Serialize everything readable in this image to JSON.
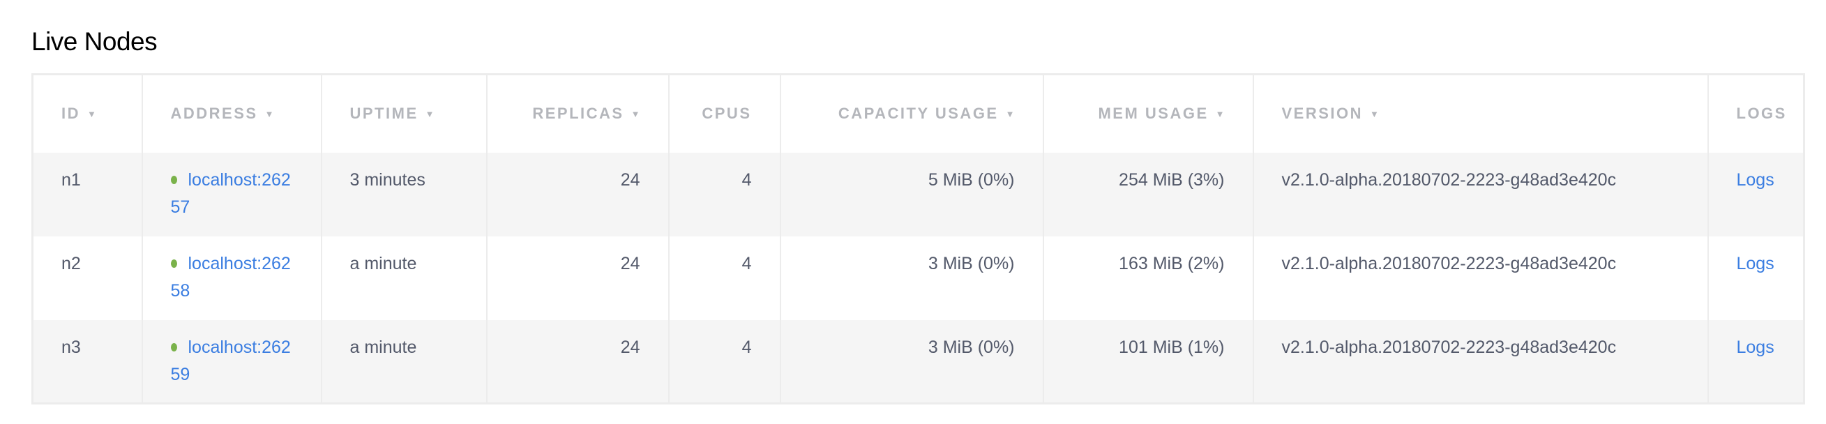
{
  "page": {
    "title": "Live Nodes"
  },
  "colors": {
    "link": "#3a7de1",
    "status_live": "#7ab24a",
    "header_text": "#b4b6bb",
    "row_stripe": "#f5f5f5"
  },
  "table": {
    "columns": [
      {
        "label": "ID",
        "sortable": true
      },
      {
        "label": "ADDRESS",
        "sortable": true
      },
      {
        "label": "UPTIME",
        "sortable": true
      },
      {
        "label": "REPLICAS",
        "sortable": true
      },
      {
        "label": "CPUS",
        "sortable": false
      },
      {
        "label": "CAPACITY USAGE",
        "sortable": true
      },
      {
        "label": "MEM USAGE",
        "sortable": true
      },
      {
        "label": "VERSION",
        "sortable": true
      },
      {
        "label": "LOGS",
        "sortable": false
      }
    ],
    "sort_caret": "▼",
    "rows": [
      {
        "id": "n1",
        "address": "localhost:26257",
        "status": "live",
        "uptime": "3 minutes",
        "replicas": "24",
        "cpus": "4",
        "capacity": "5 MiB (0%)",
        "mem": "254 MiB (3%)",
        "version": "v2.1.0-alpha.20180702-2223-g48ad3e420c",
        "logs": "Logs"
      },
      {
        "id": "n2",
        "address": "localhost:26258",
        "status": "live",
        "uptime": "a minute",
        "replicas": "24",
        "cpus": "4",
        "capacity": "3 MiB (0%)",
        "mem": "163 MiB (2%)",
        "version": "v2.1.0-alpha.20180702-2223-g48ad3e420c",
        "logs": "Logs"
      },
      {
        "id": "n3",
        "address": "localhost:26259",
        "status": "live",
        "uptime": "a minute",
        "replicas": "24",
        "cpus": "4",
        "capacity": "3 MiB (0%)",
        "mem": "101 MiB (1%)",
        "version": "v2.1.0-alpha.20180702-2223-g48ad3e420c",
        "logs": "Logs"
      }
    ]
  }
}
